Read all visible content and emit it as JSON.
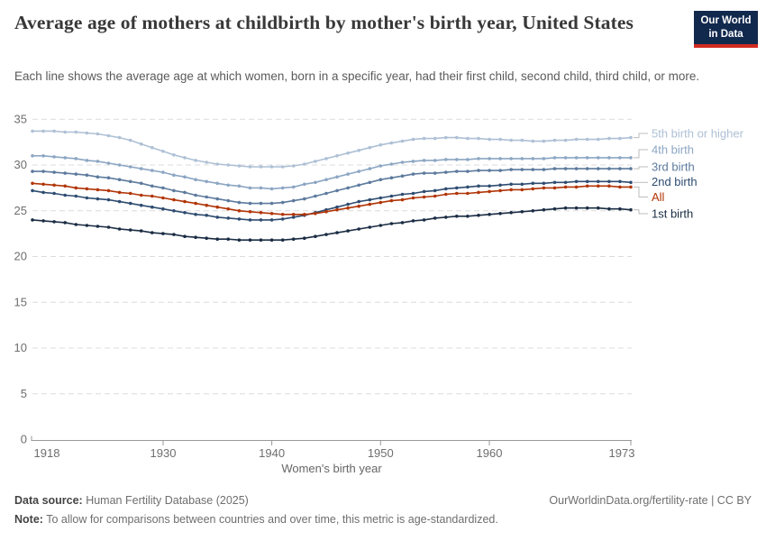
{
  "header": {
    "title": "Average age of mothers at childbirth by mother's birth year, United States",
    "subtitle": "Each line shows the average age at which women, born in a specific year, had their first child, second child, third child, or more.",
    "logo": {
      "line1": "Our World",
      "line2": "in Data"
    }
  },
  "chart_data": {
    "type": "line",
    "title": "Average age of mothers at childbirth by mother's birth year, United States",
    "xlabel": "Women's birth year",
    "ylabel": "",
    "x_range": [
      1918,
      1973
    ],
    "ylim": [
      0,
      35
    ],
    "grid": true,
    "legend_position": "right",
    "x_tick_labels": [
      "1918",
      "1930",
      "1940",
      "1950",
      "1960",
      "1973"
    ],
    "y_tick_labels": [
      "35",
      "30",
      "25",
      "20",
      "15",
      "10",
      "5",
      "0"
    ],
    "x": [
      1918,
      1919,
      1920,
      1921,
      1922,
      1923,
      1924,
      1925,
      1926,
      1927,
      1928,
      1929,
      1930,
      1931,
      1932,
      1933,
      1934,
      1935,
      1936,
      1937,
      1938,
      1939,
      1940,
      1941,
      1942,
      1943,
      1944,
      1945,
      1946,
      1947,
      1948,
      1949,
      1950,
      1951,
      1952,
      1953,
      1954,
      1955,
      1956,
      1957,
      1958,
      1959,
      1960,
      1961,
      1962,
      1963,
      1964,
      1965,
      1966,
      1967,
      1968,
      1969,
      1970,
      1971,
      1972,
      1973
    ],
    "series": [
      {
        "name": "5th birth or higher",
        "color": "#aec0d5",
        "values": [
          33.7,
          33.7,
          33.7,
          33.6,
          33.6,
          33.5,
          33.4,
          33.2,
          33.0,
          32.7,
          32.3,
          31.9,
          31.5,
          31.1,
          30.8,
          30.5,
          30.3,
          30.1,
          30.0,
          29.9,
          29.8,
          29.8,
          29.8,
          29.8,
          29.9,
          30.1,
          30.4,
          30.7,
          31.0,
          31.3,
          31.6,
          31.9,
          32.2,
          32.4,
          32.6,
          32.8,
          32.9,
          32.9,
          33.0,
          33.0,
          32.9,
          32.9,
          32.8,
          32.8,
          32.7,
          32.7,
          32.6,
          32.6,
          32.7,
          32.7,
          32.8,
          32.8,
          32.8,
          32.9,
          32.9,
          33.0
        ]
      },
      {
        "name": "4th birth",
        "color": "#8ca6c3",
        "values": [
          31.0,
          31.0,
          30.9,
          30.8,
          30.7,
          30.5,
          30.4,
          30.2,
          30.0,
          29.8,
          29.6,
          29.4,
          29.2,
          28.9,
          28.7,
          28.4,
          28.2,
          28.0,
          27.8,
          27.7,
          27.5,
          27.5,
          27.4,
          27.5,
          27.6,
          27.9,
          28.1,
          28.4,
          28.7,
          29.0,
          29.3,
          29.6,
          29.9,
          30.1,
          30.3,
          30.4,
          30.5,
          30.5,
          30.6,
          30.6,
          30.6,
          30.7,
          30.7,
          30.7,
          30.7,
          30.7,
          30.7,
          30.7,
          30.8,
          30.8,
          30.8,
          30.8,
          30.8,
          30.8,
          30.8,
          30.8
        ]
      },
      {
        "name": "3rd birth",
        "color": "#5d7a9d",
        "values": [
          29.3,
          29.3,
          29.2,
          29.1,
          29.0,
          28.9,
          28.7,
          28.6,
          28.4,
          28.2,
          28.0,
          27.7,
          27.5,
          27.2,
          27.0,
          26.7,
          26.5,
          26.3,
          26.1,
          25.9,
          25.8,
          25.8,
          25.8,
          25.9,
          26.1,
          26.3,
          26.6,
          26.9,
          27.2,
          27.5,
          27.8,
          28.1,
          28.4,
          28.6,
          28.8,
          29.0,
          29.1,
          29.1,
          29.2,
          29.3,
          29.3,
          29.4,
          29.4,
          29.4,
          29.5,
          29.5,
          29.5,
          29.5,
          29.6,
          29.6,
          29.6,
          29.6,
          29.6,
          29.6,
          29.6,
          29.6
        ]
      },
      {
        "name": "2nd birth",
        "color": "#2e4c70",
        "values": [
          27.2,
          27.0,
          26.9,
          26.7,
          26.6,
          26.4,
          26.3,
          26.2,
          26.0,
          25.8,
          25.6,
          25.4,
          25.2,
          25.0,
          24.8,
          24.6,
          24.5,
          24.3,
          24.2,
          24.1,
          24.0,
          24.0,
          24.0,
          24.1,
          24.3,
          24.5,
          24.8,
          25.1,
          25.4,
          25.7,
          26.0,
          26.2,
          26.4,
          26.6,
          26.8,
          26.9,
          27.1,
          27.2,
          27.4,
          27.5,
          27.6,
          27.7,
          27.7,
          27.8,
          27.9,
          27.9,
          28.0,
          28.0,
          28.1,
          28.1,
          28.2,
          28.2,
          28.2,
          28.2,
          28.2,
          28.1
        ]
      },
      {
        "name": "All",
        "color": "#b13507",
        "values": [
          28.0,
          27.9,
          27.8,
          27.7,
          27.5,
          27.4,
          27.3,
          27.2,
          27.0,
          26.9,
          26.7,
          26.6,
          26.4,
          26.2,
          26.0,
          25.8,
          25.6,
          25.4,
          25.2,
          25.0,
          24.9,
          24.8,
          24.7,
          24.6,
          24.6,
          24.6,
          24.7,
          24.9,
          25.1,
          25.3,
          25.5,
          25.7,
          25.9,
          26.1,
          26.2,
          26.4,
          26.5,
          26.6,
          26.8,
          26.9,
          26.9,
          27.0,
          27.1,
          27.2,
          27.3,
          27.3,
          27.4,
          27.5,
          27.5,
          27.6,
          27.6,
          27.7,
          27.7,
          27.7,
          27.6,
          27.6
        ]
      },
      {
        "name": "1st birth",
        "color": "#1b2d44",
        "values": [
          24.0,
          23.9,
          23.8,
          23.7,
          23.5,
          23.4,
          23.3,
          23.2,
          23.0,
          22.9,
          22.8,
          22.6,
          22.5,
          22.4,
          22.2,
          22.1,
          22.0,
          21.9,
          21.9,
          21.8,
          21.8,
          21.8,
          21.8,
          21.8,
          21.9,
          22.0,
          22.2,
          22.4,
          22.6,
          22.8,
          23.0,
          23.2,
          23.4,
          23.6,
          23.7,
          23.9,
          24.0,
          24.2,
          24.3,
          24.4,
          24.4,
          24.5,
          24.6,
          24.7,
          24.8,
          24.9,
          25.0,
          25.1,
          25.2,
          25.3,
          25.3,
          25.3,
          25.3,
          25.2,
          25.2,
          25.1
        ]
      }
    ]
  },
  "footer": {
    "source_label": "Data source:",
    "source_text": " Human Fertility Database (2025)",
    "right_text": "OurWorldinData.org/fertility-rate | CC BY",
    "note_label": "Note:",
    "note_text": " To allow for comparisons between countries and over time, this metric is age-standardized."
  }
}
